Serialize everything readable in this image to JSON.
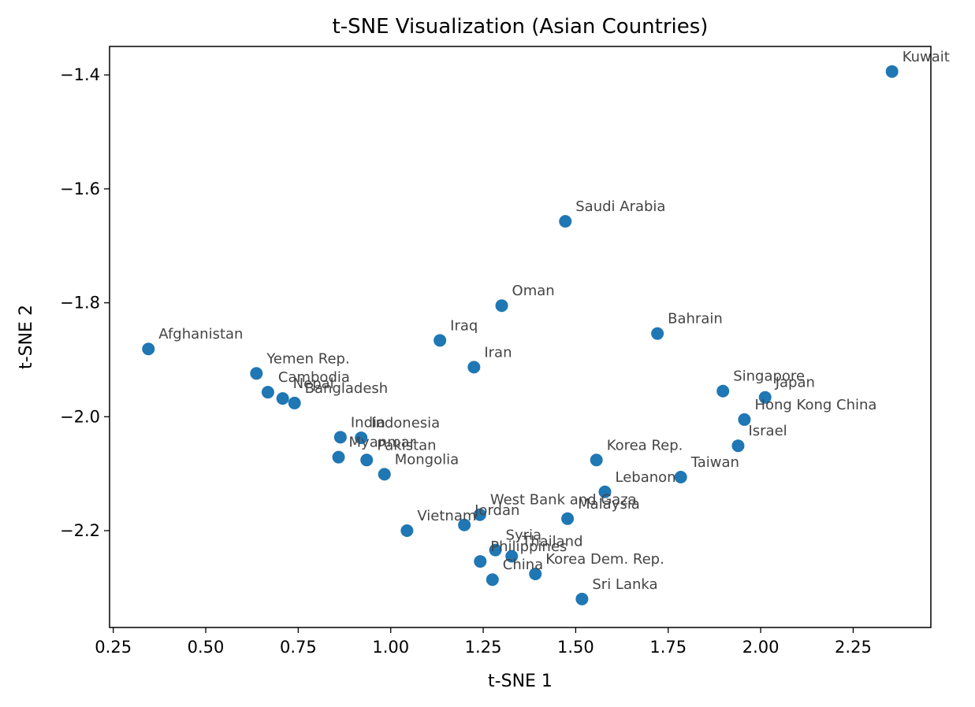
{
  "chart_data": {
    "type": "scatter",
    "title": "t-SNE Visualization (Asian Countries)",
    "xlabel": "t-SNE 1",
    "ylabel": "t-SNE 2",
    "xlim": [
      0.24,
      2.46
    ],
    "ylim": [
      -2.37,
      -1.35
    ],
    "xticks": [
      0.25,
      0.5,
      0.75,
      1.0,
      1.25,
      1.5,
      1.75,
      2.0,
      2.25
    ],
    "xtick_labels": [
      "0.25",
      "0.50",
      "0.75",
      "1.00",
      "1.25",
      "1.50",
      "1.75",
      "2.00",
      "2.25"
    ],
    "yticks": [
      -2.2,
      -2.0,
      -1.8,
      -1.6,
      -1.4
    ],
    "ytick_labels": [
      "−2.2",
      "−2.0",
      "−1.8",
      "−1.6",
      "−1.4"
    ],
    "grid": false,
    "point_color": "#1f77b4",
    "points": [
      {
        "label": "Kuwait",
        "x": 2.355,
        "y": -1.394
      },
      {
        "label": "Saudi Arabia",
        "x": 1.472,
        "y": -1.657
      },
      {
        "label": "Oman",
        "x": 1.3,
        "y": -1.805
      },
      {
        "label": "Bahrain",
        "x": 1.721,
        "y": -1.854
      },
      {
        "label": "Afghanistan",
        "x": 0.345,
        "y": -1.881
      },
      {
        "label": "Iraq",
        "x": 1.133,
        "y": -1.866
      },
      {
        "label": "Iran",
        "x": 1.225,
        "y": -1.913
      },
      {
        "label": "Yemen Rep.",
        "x": 0.637,
        "y": -1.924
      },
      {
        "label": "Cambodia",
        "x": 0.668,
        "y": -1.957
      },
      {
        "label": "Nepal",
        "x": 0.708,
        "y": -1.968
      },
      {
        "label": "Bangladesh",
        "x": 0.74,
        "y": -1.976
      },
      {
        "label": "Singapore",
        "x": 1.898,
        "y": -1.955
      },
      {
        "label": "Japan",
        "x": 2.012,
        "y": -1.966
      },
      {
        "label": "Hong Kong China",
        "x": 1.956,
        "y": -2.005
      },
      {
        "label": "Israel",
        "x": 1.939,
        "y": -2.051
      },
      {
        "label": "India",
        "x": 0.864,
        "y": -2.036
      },
      {
        "label": "Indonesia",
        "x": 0.92,
        "y": -2.037
      },
      {
        "label": "Myanmar",
        "x": 0.859,
        "y": -2.071
      },
      {
        "label": "Pakistan",
        "x": 0.935,
        "y": -2.076
      },
      {
        "label": "Mongolia",
        "x": 0.983,
        "y": -2.101
      },
      {
        "label": "Korea Rep.",
        "x": 1.556,
        "y": -2.076
      },
      {
        "label": "Taiwan",
        "x": 1.784,
        "y": -2.106
      },
      {
        "label": "Lebanon",
        "x": 1.579,
        "y": -2.132
      },
      {
        "label": "West Bank and Gaza",
        "x": 1.241,
        "y": -2.172
      },
      {
        "label": "Malaysia",
        "x": 1.478,
        "y": -2.179
      },
      {
        "label": "Jordan",
        "x": 1.199,
        "y": -2.19
      },
      {
        "label": "Vietnam",
        "x": 1.044,
        "y": -2.2
      },
      {
        "label": "Syria",
        "x": 1.283,
        "y": -2.234
      },
      {
        "label": "Thailand",
        "x": 1.327,
        "y": -2.245
      },
      {
        "label": "Philippines",
        "x": 1.242,
        "y": -2.254
      },
      {
        "label": "Korea Dem. Rep.",
        "x": 1.391,
        "y": -2.276
      },
      {
        "label": "China",
        "x": 1.275,
        "y": -2.286
      },
      {
        "label": "Sri Lanka",
        "x": 1.517,
        "y": -2.32
      }
    ]
  }
}
